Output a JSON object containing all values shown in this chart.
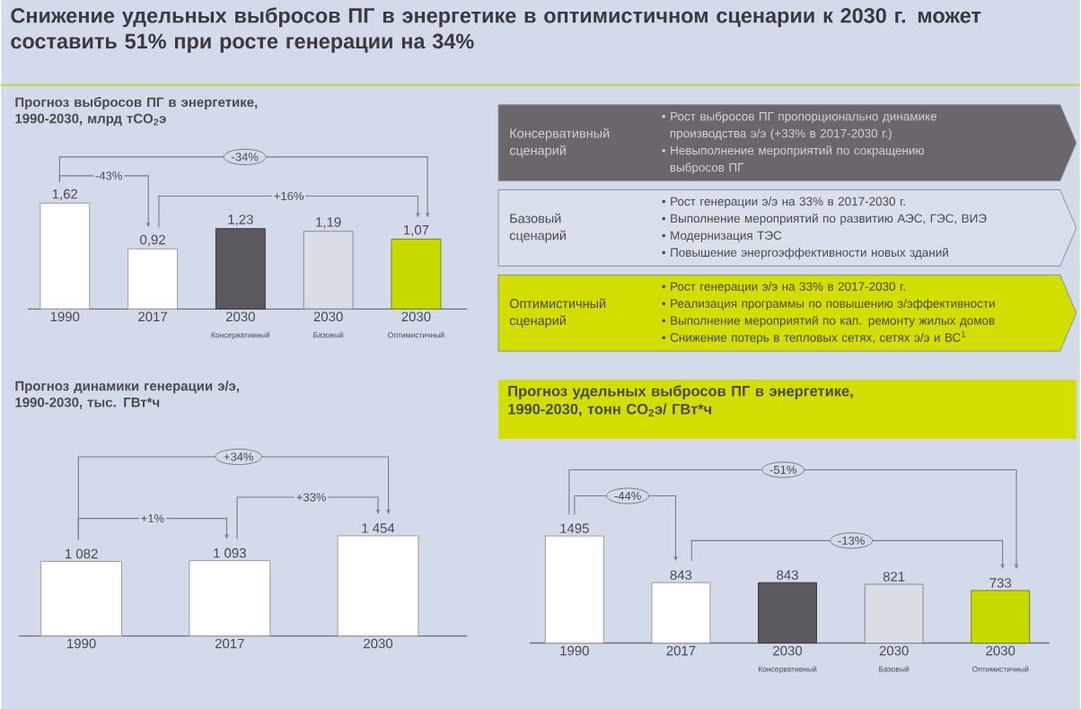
{
  "chart_data": [
    {
      "type": "other",
      "title": "Снижение удельных выбросов ПГ в энергетике в оптимистичном сценарии к 2030 г. может составить 51% при росте генерации на 34%"
    },
    {
      "type": "bar",
      "title": "Прогноз выбросов ПГ в энергетике, 1990-2030, млрд тCO$_{2}$э",
      "categories": [
        "1990",
        "2017",
        "2030 Консервативный",
        "2030 Базовый",
        "2030 Оптимистичный"
      ],
      "values": [
        1.62,
        0.92,
        1.23,
        1.19,
        1.07
      ],
      "value_labels": [
        "1,62",
        "0,92",
        "1,23",
        "1,19",
        "1,07"
      ],
      "colors": [
        "#ffffff",
        "#ffffff",
        "#5c595e",
        "#d8dde6",
        "#c6da00"
      ],
      "annotations": [
        "-34%",
        "-43%",
        "+16%"
      ]
    },
    {
      "type": "other",
      "title": "Консервативный сценарий",
      "color": "#6b666c",
      "annotations": [
        "• Рост выбросов ПГ пропорционально динамике производства э/э (+33% в 2017-2030 г.)",
        "• Невыполнение мероприятий по сокращению выбросов ПГ"
      ]
    },
    {
      "type": "other",
      "title": "Базовый сценарий",
      "color": "#d9e0ec",
      "annotations": [
        "• Рост генерации э/э на 33% в 2017-2030 г.",
        "• Выполнение мероприятий по развитию АЭС, ГЭС, ВИЭ",
        "• Модернизация ТЭС",
        "• Повышение энергоэффективности новых зданий"
      ]
    },
    {
      "type": "other",
      "title": "Оптимистичный сценарий",
      "color": "#d2de00",
      "annotations": [
        "• Рост генерации э/э на 33% в 2017-2030 г.",
        "• Реализация программы по повышению э/эффективности",
        "• Выполнение мероприятий по кап. ремонту жилых домов",
        "• Снижение потерь в тепловых сетях, сетях э/э и ВС$^{1}$"
      ]
    },
    {
      "type": "bar",
      "title": "Прогноз динамики генерации э/э, 1990-2030, тыс. ГВт*ч",
      "categories": [
        "1990",
        "2017",
        "2030"
      ],
      "values": [
        1082,
        1093,
        1454
      ],
      "value_labels": [
        "1 082",
        "1 093",
        "1 454"
      ],
      "color": "#ffffff",
      "annotations": [
        "+34%",
        "+33%",
        "+1%"
      ]
    },
    {
      "type": "bar",
      "title": "Прогноз удельных выбросов ПГ в энергетике, 1990-2030, тонн CO$_{2}$э/ ГВт*ч",
      "categories": [
        "1990",
        "2017",
        "2030 Консервативный",
        "2030 Базовый",
        "2030 Оптимистичный"
      ],
      "values": [
        1495,
        843,
        843,
        821,
        733
      ],
      "data_labels": true,
      "colors": [
        "#ffffff",
        "#ffffff",
        "#5c595e",
        "#d8dde6",
        "#c6da00"
      ],
      "annotations": [
        "-51%",
        "-44%",
        "-13%"
      ]
    }
  ]
}
